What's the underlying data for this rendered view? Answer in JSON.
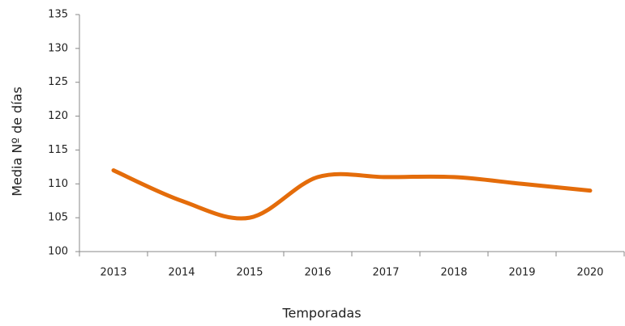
{
  "chart_data": {
    "type": "line",
    "x_label": "Temporadas",
    "y_label": "Media Nº de días",
    "categories": [
      "2013",
      "2014",
      "2015",
      "2016",
      "2017",
      "2018",
      "2019",
      "2020"
    ],
    "series": [
      {
        "name": "Media Nº de días",
        "color": "#e46c0a",
        "values": [
          112,
          107.5,
          105,
          111,
          111,
          111,
          110,
          109
        ]
      }
    ],
    "ylim": [
      100,
      135
    ],
    "yticks": [
      100,
      105,
      110,
      115,
      120,
      125,
      130,
      135
    ],
    "smooth": true
  }
}
